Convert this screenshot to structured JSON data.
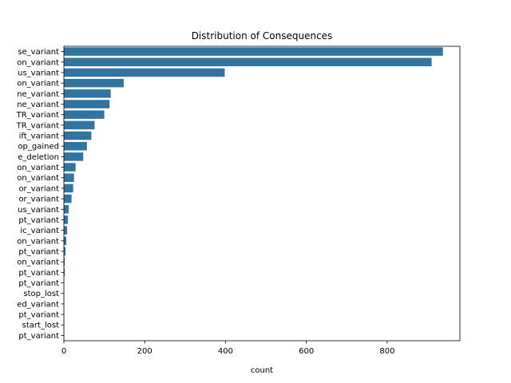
{
  "chart_data": {
    "type": "bar",
    "orientation": "horizontal",
    "title": "Distribution of Consequences",
    "xlabel": "count",
    "ylabel": "",
    "xlim": [
      0,
      980
    ],
    "xticks": [
      0,
      200,
      400,
      600,
      800
    ],
    "bar_color": "#3274a1",
    "grid": false,
    "categories": [
      "se_variant",
      "on_variant",
      "us_variant",
      "on_variant",
      "ne_variant",
      "ne_variant",
      "TR_variant",
      "TR_variant",
      "ift_variant",
      "op_gained",
      "e_deletion",
      "on_variant",
      "on_variant",
      "or_variant",
      "or_variant",
      "us_variant",
      "pt_variant",
      "ic_variant",
      "on_variant",
      "pt_variant",
      "on_variant",
      "pt_variant",
      "pt_variant",
      "stop_lost",
      "ed_variant",
      "pt_variant",
      "start_lost",
      "pt_variant"
    ],
    "values": [
      938,
      910,
      398,
      148,
      116,
      113,
      100,
      76,
      68,
      57,
      48,
      29,
      25,
      23,
      19,
      12,
      10,
      8,
      6,
      4,
      2,
      2,
      1,
      1,
      1,
      1,
      1,
      1
    ]
  }
}
